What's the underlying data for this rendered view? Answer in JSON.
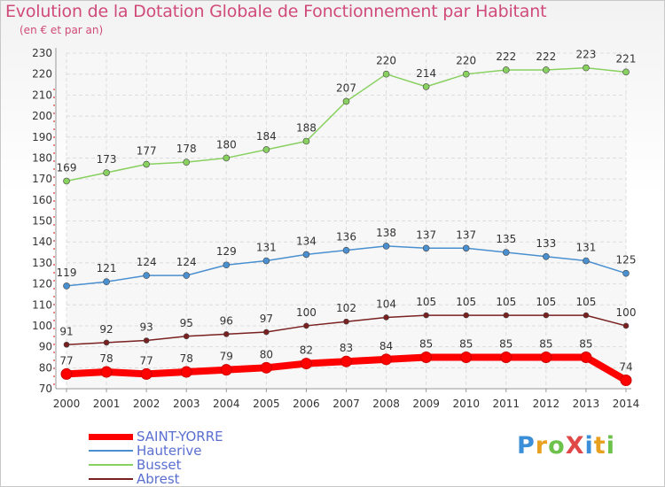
{
  "title": "Evolution de la Dotation Globale de Fonctionnement par Habitant",
  "subtitle": "(en € et par an)",
  "logo": {
    "text": "ProXiti",
    "colors": [
      "#3a8fd8",
      "#e8a020",
      "#6cc24a",
      "#e04848",
      "#3a8fd8",
      "#e8a020",
      "#6cc24a"
    ]
  },
  "chart_data": {
    "type": "line",
    "title": "Evolution de la Dotation Globale de Fonctionnement par Habitant",
    "subtitle": "(en € et par an)",
    "x": [
      "2000",
      "2001",
      "2002",
      "2003",
      "2004",
      "2005",
      "2006",
      "2007",
      "2008",
      "2009",
      "2010",
      "2011",
      "2012",
      "2013",
      "2014"
    ],
    "ylim": [
      70,
      230
    ],
    "yticks": [
      70,
      80,
      90,
      100,
      110,
      120,
      130,
      140,
      150,
      160,
      170,
      180,
      190,
      200,
      210,
      220,
      230
    ],
    "grid": true,
    "legend_position": "bottom-left",
    "series": [
      {
        "name": "SAINT-YORRE",
        "color": "#ff0000",
        "values": [
          77,
          78,
          77,
          78,
          79,
          80,
          82,
          83,
          84,
          85,
          85,
          85,
          85,
          85,
          74
        ]
      },
      {
        "name": "Hauterive",
        "color": "#4a90d0",
        "values": [
          119,
          121,
          124,
          124,
          129,
          131,
          134,
          136,
          138,
          137,
          137,
          135,
          133,
          131,
          125
        ]
      },
      {
        "name": "Busset",
        "color": "#88d060",
        "values": [
          169,
          173,
          177,
          178,
          180,
          184,
          188,
          207,
          220,
          214,
          220,
          222,
          222,
          223,
          221
        ]
      },
      {
        "name": "Abrest",
        "color": "#7a2020",
        "values": [
          91,
          92,
          93,
          95,
          96,
          97,
          100,
          102,
          104,
          105,
          105,
          105,
          105,
          105,
          100
        ]
      }
    ]
  }
}
